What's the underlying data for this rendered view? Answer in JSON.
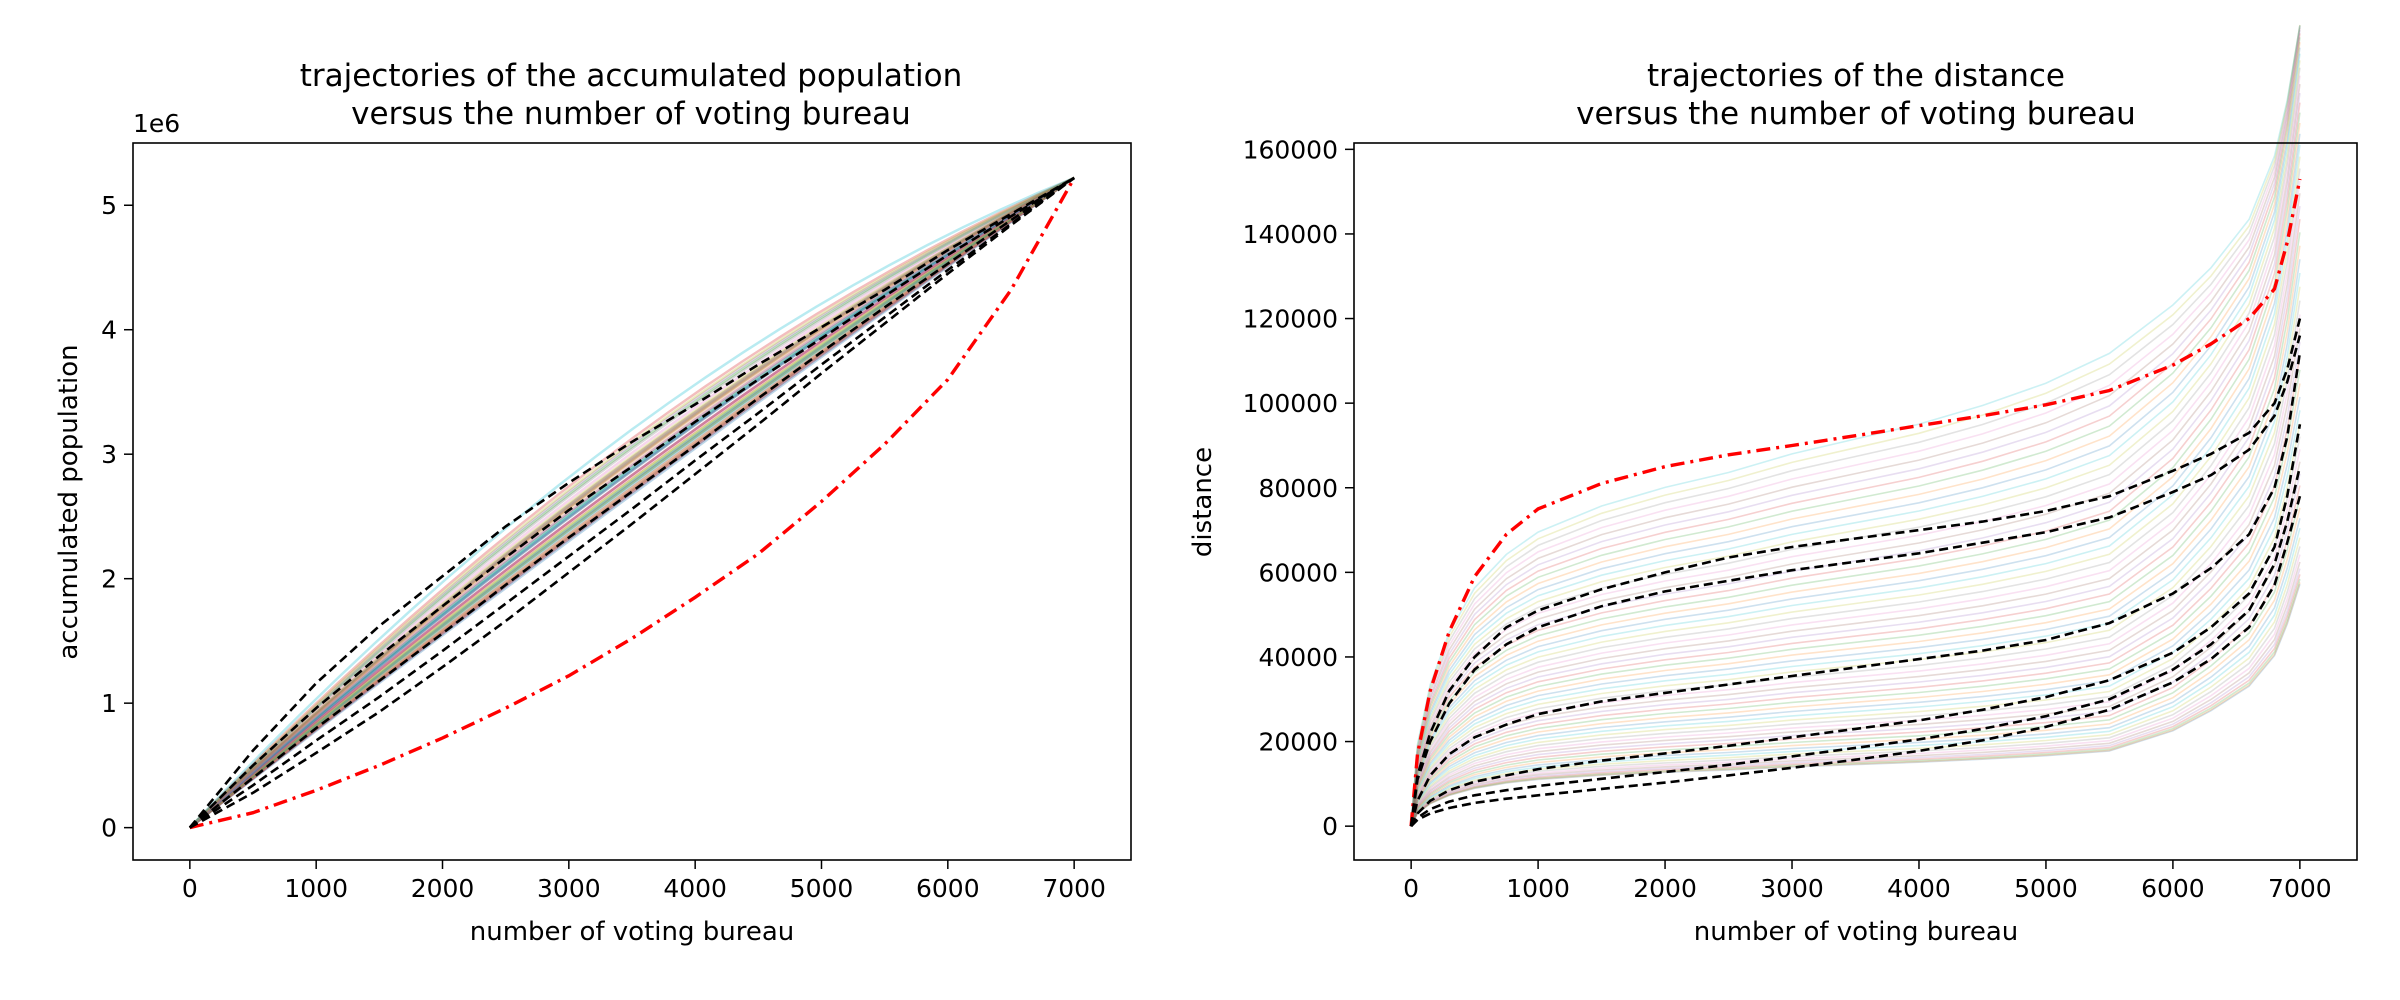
{
  "chart_data": [
    {
      "type": "line",
      "title": [
        "trajectories of the accumulated population",
        "versus the number of voting bureau"
      ],
      "xlabel": "number of voting bureau",
      "ylabel": "accumulated population",
      "offset_label": "1e6",
      "xlim": [
        -450,
        7450
      ],
      "ylim": [
        -0.26,
        5.5
      ],
      "xticks": [
        0,
        1000,
        2000,
        3000,
        4000,
        5000,
        6000,
        7000
      ],
      "yticks": [
        0,
        1,
        2,
        3,
        4,
        5
      ],
      "tick_labels_x": [
        "0",
        "1000",
        "2000",
        "3000",
        "4000",
        "5000",
        "6000",
        "7000"
      ],
      "tick_labels_y": [
        "0",
        "1",
        "2",
        "3",
        "4",
        "5"
      ],
      "grid": false,
      "bundle": {
        "count": 40,
        "x_end": 7000,
        "y_end": 5.22,
        "curvature_min": 0.05,
        "curvature_max": 0.35,
        "opacity": 0.3
      },
      "series": [
        {
          "style": "dashdot",
          "color": "#ff0000",
          "x": [
            0,
            500,
            1000,
            1500,
            2000,
            2500,
            3000,
            3500,
            4000,
            4500,
            5000,
            5500,
            6000,
            6500,
            7000
          ],
          "y": [
            0,
            0.12,
            0.3,
            0.5,
            0.72,
            0.96,
            1.22,
            1.52,
            1.85,
            2.2,
            2.62,
            3.08,
            3.6,
            4.32,
            5.22
          ]
        },
        {
          "style": "dashed",
          "color": "#000000",
          "x": [
            0,
            500,
            1000,
            1500,
            2000,
            2500,
            3000,
            3500,
            4000,
            4500,
            5000,
            5500,
            6000,
            6500,
            7000
          ],
          "y": [
            0,
            0.62,
            1.16,
            1.62,
            2.02,
            2.42,
            2.77,
            3.1,
            3.4,
            3.72,
            4.02,
            4.32,
            4.64,
            4.93,
            5.22
          ]
        },
        {
          "style": "dashed",
          "color": "#000000",
          "x": [
            0,
            500,
            1000,
            1500,
            2000,
            2500,
            3000,
            3500,
            4000,
            4500,
            5000,
            5500,
            6000,
            6500,
            7000
          ],
          "y": [
            0,
            0.5,
            0.96,
            1.38,
            1.78,
            2.17,
            2.55,
            2.9,
            3.26,
            3.6,
            3.93,
            4.27,
            4.6,
            4.91,
            5.22
          ]
        },
        {
          "style": "dashed",
          "color": "#000000",
          "x": [
            0,
            500,
            1000,
            1500,
            2000,
            2500,
            3000,
            3500,
            4000,
            4500,
            5000,
            5500,
            6000,
            6500,
            7000
          ],
          "y": [
            0,
            0.4,
            0.8,
            1.18,
            1.56,
            1.95,
            2.33,
            2.7,
            3.07,
            3.45,
            3.82,
            4.18,
            4.53,
            4.88,
            5.22
          ]
        },
        {
          "style": "dashed",
          "color": "#000000",
          "x": [
            0,
            500,
            1000,
            1500,
            2000,
            2500,
            3000,
            3500,
            4000,
            4500,
            5000,
            5500,
            6000,
            6500,
            7000
          ],
          "y": [
            0,
            0.34,
            0.7,
            1.05,
            1.42,
            1.8,
            2.18,
            2.56,
            2.95,
            3.33,
            3.72,
            4.1,
            4.48,
            4.85,
            5.22
          ]
        },
        {
          "style": "dashed",
          "color": "#000000",
          "x": [
            0,
            500,
            1000,
            1500,
            2000,
            2500,
            3000,
            3500,
            4000,
            4500,
            5000,
            5500,
            6000,
            6500,
            7000
          ],
          "y": [
            0,
            0.28,
            0.6,
            0.93,
            1.29,
            1.66,
            2.05,
            2.44,
            2.84,
            3.24,
            3.65,
            4.05,
            4.45,
            4.84,
            5.22
          ]
        }
      ]
    },
    {
      "type": "line",
      "title": [
        "trajectories of the distance",
        "versus the number of voting bureau"
      ],
      "xlabel": "number of voting bureau",
      "ylabel": "distance",
      "xlim": [
        -450,
        7450
      ],
      "ylim": [
        -8000,
        161500
      ],
      "xticks": [
        0,
        1000,
        2000,
        3000,
        4000,
        5000,
        6000,
        7000
      ],
      "yticks": [
        0,
        20000,
        40000,
        60000,
        80000,
        100000,
        120000,
        140000,
        160000
      ],
      "tick_labels_x": [
        "0",
        "1000",
        "2000",
        "3000",
        "4000",
        "5000",
        "6000",
        "7000"
      ],
      "tick_labels_y": [
        "0",
        "20000",
        "40000",
        "60000",
        "80000",
        "100000",
        "120000",
        "140000",
        "160000"
      ],
      "grid": false,
      "bundle": {
        "count": 60,
        "x_end": 7000,
        "plateau_min": 14000,
        "plateau_max": 88000,
        "opacity": 0.22
      },
      "series": [
        {
          "style": "dashdot",
          "color": "#ff0000",
          "x": [
            0,
            50,
            150,
            300,
            500,
            750,
            1000,
            1500,
            2000,
            2500,
            3000,
            3500,
            4000,
            4500,
            5000,
            5500,
            6000,
            6300,
            6600,
            6800,
            6900,
            7000
          ],
          "y": [
            0,
            17000,
            32000,
            46000,
            59000,
            69000,
            75000,
            81000,
            85000,
            87800,
            90000,
            92300,
            94700,
            97000,
            99600,
            103000,
            109000,
            114000,
            120000,
            127000,
            138000,
            153000
          ]
        },
        {
          "style": "dashed",
          "color": "#000000",
          "x": [
            0,
            50,
            150,
            300,
            500,
            750,
            1000,
            1500,
            2000,
            2500,
            3000,
            3500,
            4000,
            4500,
            5000,
            5500,
            6000,
            6300,
            6600,
            6800,
            6900,
            7000
          ],
          "y": [
            0,
            12000,
            22000,
            32000,
            40000,
            47000,
            51000,
            56000,
            60000,
            63500,
            66000,
            68000,
            70000,
            72000,
            74500,
            78000,
            84000,
            88000,
            93000,
            100000,
            108000,
            120000
          ]
        },
        {
          "style": "dashed",
          "color": "#000000",
          "x": [
            0,
            50,
            150,
            300,
            500,
            750,
            1000,
            1500,
            2000,
            2500,
            3000,
            3500,
            4000,
            4500,
            5000,
            5500,
            6000,
            6300,
            6600,
            6800,
            6900,
            7000
          ],
          "y": [
            0,
            11000,
            20000,
            29000,
            37000,
            43000,
            47000,
            52000,
            55500,
            58000,
            60500,
            62500,
            64500,
            67000,
            69500,
            73000,
            79000,
            83000,
            89000,
            97000,
            105000,
            116000
          ]
        },
        {
          "style": "dashed",
          "color": "#000000",
          "x": [
            0,
            50,
            150,
            300,
            500,
            750,
            1000,
            1500,
            2000,
            2500,
            3000,
            3500,
            4000,
            4500,
            5000,
            5500,
            6000,
            6300,
            6600,
            6800,
            6900,
            7000
          ],
          "y": [
            0,
            6000,
            12000,
            17000,
            21000,
            24000,
            26500,
            29500,
            31500,
            33500,
            35500,
            37500,
            39500,
            41500,
            44000,
            48000,
            55000,
            61000,
            69000,
            80000,
            92000,
            112000
          ]
        },
        {
          "style": "dashed",
          "color": "#000000",
          "x": [
            0,
            50,
            150,
            300,
            500,
            750,
            1000,
            1500,
            2000,
            2500,
            3000,
            3500,
            4000,
            4500,
            5000,
            5500,
            6000,
            6300,
            6600,
            6800,
            6900,
            7000
          ],
          "y": [
            0,
            3000,
            6000,
            8500,
            10500,
            12000,
            13500,
            15500,
            17200,
            19000,
            21000,
            23000,
            25000,
            27500,
            30500,
            34500,
            41000,
            47000,
            55000,
            66000,
            78000,
            95000
          ]
        },
        {
          "style": "dashed",
          "color": "#000000",
          "x": [
            0,
            50,
            150,
            300,
            500,
            750,
            1000,
            1500,
            2000,
            2500,
            3000,
            3500,
            4000,
            4500,
            5000,
            5500,
            6000,
            6300,
            6600,
            6800,
            6900,
            7000
          ],
          "y": [
            0,
            2000,
            4000,
            5800,
            7300,
            8500,
            9500,
            11200,
            12800,
            14500,
            16500,
            18500,
            20500,
            23000,
            26000,
            30000,
            37000,
            43000,
            51000,
            62000,
            72000,
            85000
          ]
        },
        {
          "style": "dashed",
          "color": "#000000",
          "x": [
            0,
            50,
            150,
            300,
            500,
            750,
            1000,
            1500,
            2000,
            2500,
            3000,
            3500,
            4000,
            4500,
            5000,
            5500,
            6000,
            6300,
            6600,
            6800,
            6900,
            7000
          ],
          "y": [
            0,
            1500,
            3000,
            4300,
            5500,
            6500,
            7300,
            8800,
            10300,
            12000,
            13800,
            15700,
            17800,
            20300,
            23500,
            27500,
            34000,
            39500,
            47000,
            57000,
            67000,
            78000
          ]
        }
      ]
    }
  ]
}
